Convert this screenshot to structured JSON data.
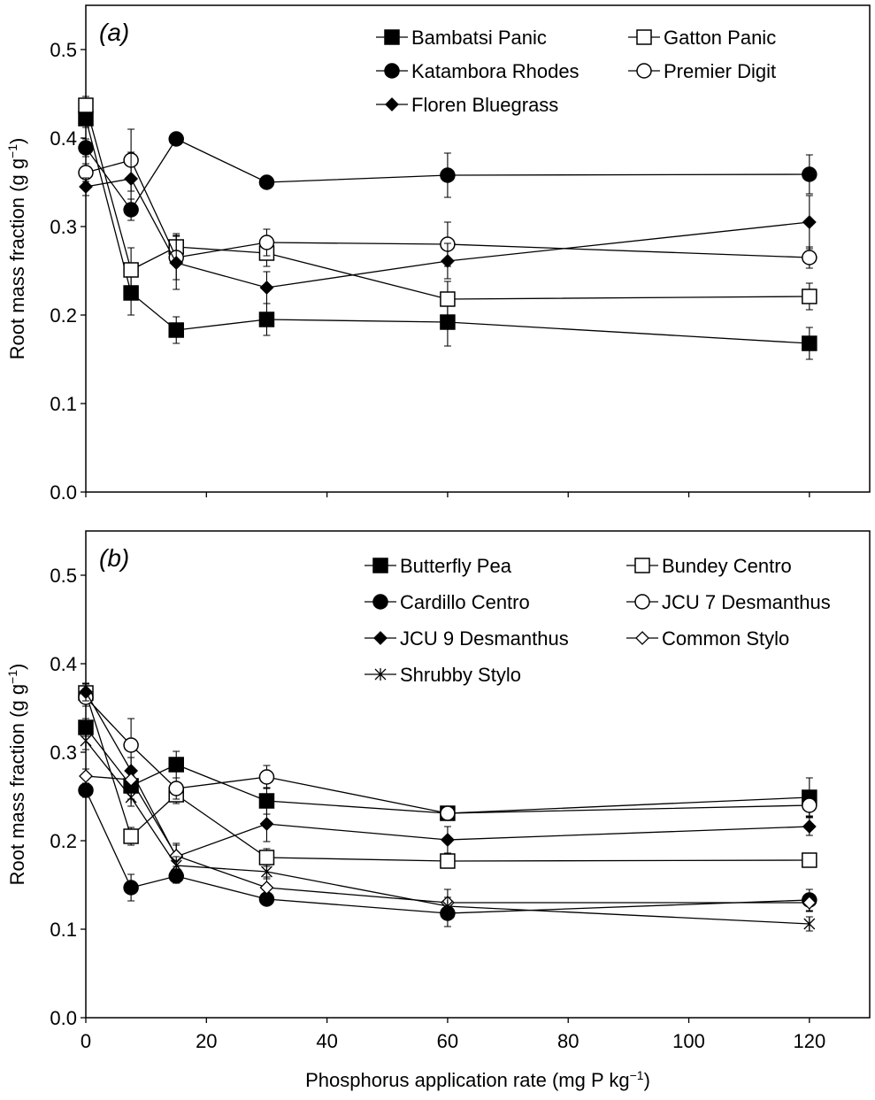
{
  "figure": {
    "xlabel": "Phosphorus  application rate (mg P kg",
    "xlabel_sup": "−1",
    "xlabel_end": ")"
  },
  "chart_data": [
    {
      "type": "line",
      "panel_label": "a",
      "title": "",
      "xlabel": "Phosphorus application rate (mg P kg−1)",
      "ylabel": "Root mass fraction (g g",
      "ylabel_sup": "−1",
      "ylabel_end": ")",
      "xlim": [
        0,
        130
      ],
      "ylim": [
        0,
        0.55
      ],
      "yticks": [
        0.0,
        0.1,
        0.2,
        0.3,
        0.4,
        0.5
      ],
      "ytick_labels": [
        "0.0",
        "0.1",
        "0.2",
        "0.3",
        "0.4",
        "0.5"
      ],
      "x": [
        0,
        7.5,
        15,
        30,
        60,
        120
      ],
      "legend_position": "top-right",
      "series": [
        {
          "name": "Bambatsi Panic",
          "marker": "square-filled",
          "values": [
            0.422,
            0.225,
            0.183,
            0.195,
            0.192,
            0.168
          ],
          "errors": [
            0.01,
            0.025,
            0.015,
            0.018,
            0.027,
            0.018
          ]
        },
        {
          "name": "Gatton Panic",
          "marker": "square-open",
          "values": [
            0.437,
            0.251,
            0.277,
            0.27,
            0.218,
            0.221
          ],
          "errors": [
            0.01,
            0.025,
            0.015,
            0.015,
            0.02,
            0.015
          ]
        },
        {
          "name": "Katambora Rhodes",
          "marker": "circle-filled",
          "values": [
            0.389,
            0.319,
            0.399,
            0.35,
            0.358,
            0.359
          ],
          "errors": [
            0.01,
            0.012,
            0.005,
            0.006,
            0.025,
            0.022
          ]
        },
        {
          "name": "Premier Digit",
          "marker": "circle-open",
          "values": [
            0.361,
            0.375,
            0.265,
            0.282,
            0.28,
            0.265
          ],
          "errors": [
            0.01,
            0.035,
            0.025,
            0.015,
            0.025,
            0.012
          ]
        },
        {
          "name": "Floren Bluegrass",
          "marker": "diamond-filled",
          "values": [
            0.345,
            0.354,
            0.259,
            0.231,
            0.261,
            0.305
          ],
          "errors": [
            0.01,
            0.03,
            0.03,
            0.018,
            0.02,
            0.03
          ]
        }
      ]
    },
    {
      "type": "line",
      "panel_label": "b",
      "title": "",
      "xlabel": "Phosphorus application rate (mg P kg−1)",
      "ylabel": "Root mass fraction (g g",
      "ylabel_sup": "−1",
      "ylabel_end": ")",
      "xlim": [
        0,
        130
      ],
      "ylim": [
        0,
        0.55
      ],
      "yticks": [
        0.0,
        0.1,
        0.2,
        0.3,
        0.4,
        0.5
      ],
      "ytick_labels": [
        "0.0",
        "0.1",
        "0.2",
        "0.3",
        "0.4",
        "0.5"
      ],
      "xticks": [
        0,
        20,
        40,
        60,
        80,
        100,
        120
      ],
      "xtick_labels": [
        "0",
        "20",
        "40",
        "60",
        "80",
        "100",
        "120"
      ],
      "x": [
        0,
        7.5,
        15,
        30,
        60,
        120
      ],
      "legend_position": "top-right",
      "series": [
        {
          "name": "Butterfly Pea",
          "marker": "square-filled",
          "values": [
            0.328,
            0.262,
            0.286,
            0.245,
            0.231,
            0.249
          ],
          "errors": [
            0.01,
            0.015,
            0.015,
            0.015,
            0.005,
            0.022
          ]
        },
        {
          "name": "Bundey Centro",
          "marker": "square-open",
          "values": [
            0.367,
            0.205,
            0.252,
            0.181,
            0.177,
            0.178
          ],
          "errors": [
            0.01,
            0.01,
            0.01,
            0.01,
            0.005,
            0.008
          ]
        },
        {
          "name": "Cardillo Centro",
          "marker": "circle-filled",
          "values": [
            0.257,
            0.147,
            0.16,
            0.134,
            0.118,
            0.133
          ],
          "errors": [
            0.008,
            0.015,
            0.008,
            0.006,
            0.015,
            0.012
          ]
        },
        {
          "name": "JCU 7 Desmanthus",
          "marker": "circle-open",
          "values": [
            0.362,
            0.308,
            0.259,
            0.272,
            0.231,
            0.24
          ],
          "errors": [
            0.01,
            0.03,
            0.012,
            0.013,
            0.005,
            0.012
          ]
        },
        {
          "name": "JCU 9 Desmanthus",
          "marker": "diamond-filled",
          "values": [
            0.368,
            0.279,
            0.182,
            0.219,
            0.201,
            0.216
          ],
          "errors": [
            0.01,
            0.015,
            0.015,
            0.02,
            0.015,
            0.01
          ]
        },
        {
          "name": "Common Stylo",
          "marker": "diamond-open",
          "values": [
            0.273,
            0.269,
            0.183,
            0.147,
            0.13,
            0.13
          ],
          "errors": [
            0.008,
            0.01,
            0.012,
            0.012,
            0.015,
            0.01
          ]
        },
        {
          "name": "Shrubby Stylo",
          "marker": "asterisk",
          "values": [
            0.313,
            0.249,
            0.172,
            0.165,
            0.126,
            0.106
          ],
          "errors": [
            0.01,
            0.01,
            0.01,
            0.008,
            0.01,
            0.008
          ]
        }
      ]
    }
  ]
}
